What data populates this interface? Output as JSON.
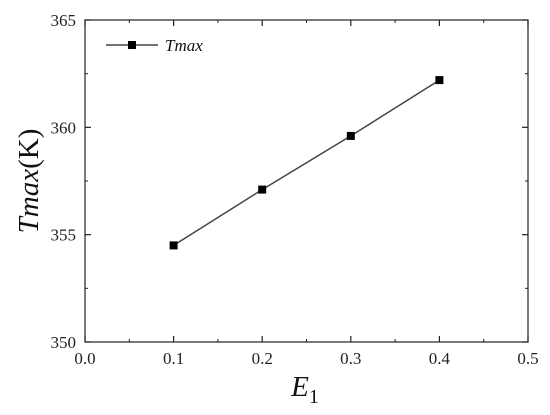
{
  "chart_data": {
    "type": "line",
    "xlabel_main": "E",
    "xlabel_sub": "1",
    "ylabel_italic": "Tmax",
    "ylabel_unit": "(K)",
    "xlim": [
      0.0,
      0.5
    ],
    "ylim": [
      350,
      365
    ],
    "x_ticks": [
      "0.0",
      "0.1",
      "0.2",
      "0.3",
      "0.4",
      "0.5"
    ],
    "y_ticks": [
      "350",
      "355",
      "360",
      "365"
    ],
    "legend_position": "top-left",
    "grid": false,
    "series": [
      {
        "name": "Tmax",
        "marker": "square",
        "color": "#000000",
        "line_color": "#444444",
        "x": [
          0.1,
          0.2,
          0.3,
          0.4
        ],
        "y": [
          354.5,
          357.1,
          359.6,
          362.2
        ]
      }
    ]
  }
}
